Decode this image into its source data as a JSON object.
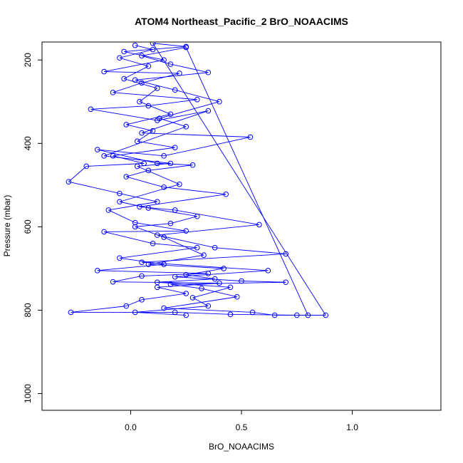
{
  "chart_data": {
    "type": "line",
    "title": "ATOM4 Northeast_Pacific_2 BrO_NOAACIMS",
    "xlabel": "BrO_NOAACIMS",
    "ylabel": "Pressure (mbar)",
    "xlim": [
      -0.4,
      1.4
    ],
    "ylim": [
      1040,
      157
    ],
    "y_reversed": true,
    "x_ticks": [
      0.0,
      0.5,
      1.0
    ],
    "x_tick_labels": [
      "0.0",
      "0.5",
      "1.0"
    ],
    "y_ticks": [
      200,
      400,
      600,
      800,
      1000
    ],
    "y_tick_labels": [
      "200",
      "400",
      "600",
      "800",
      "1000"
    ],
    "grid": false,
    "legend": "none",
    "series_color": "#0000ff",
    "marker": "open-circle",
    "series": [
      {
        "points": [
          [
            0.02,
            165
          ],
          [
            0.1,
            175
          ],
          [
            -0.05,
            195
          ],
          [
            0.08,
            215
          ],
          [
            -0.03,
            245
          ],
          [
            0.12,
            268
          ],
          [
            0.04,
            300
          ],
          [
            0.18,
            330
          ],
          [
            -0.02,
            355
          ],
          [
            0.1,
            370
          ],
          [
            0.03,
            395
          ],
          [
            0.2,
            410
          ],
          [
            -0.08,
            430
          ],
          [
            0.06,
            448
          ],
          [
            -0.2,
            455
          ],
          [
            -0.28,
            492
          ],
          [
            -0.05,
            520
          ],
          [
            0.12,
            540
          ],
          [
            -0.1,
            560
          ],
          [
            0.02,
            590
          ],
          [
            0.25,
            610
          ],
          [
            -0.12,
            612
          ],
          [
            0.1,
            640
          ],
          [
            0.3,
            650
          ],
          [
            -0.05,
            675
          ],
          [
            0.15,
            690
          ],
          [
            -0.15,
            705
          ],
          [
            0.35,
            712
          ],
          [
            0.05,
            718
          ],
          [
            -0.08,
            732
          ],
          [
            0.4,
            735
          ],
          [
            0.12,
            745
          ],
          [
            0.25,
            760
          ],
          [
            0.05,
            775
          ],
          [
            -0.02,
            790
          ],
          [
            -0.27,
            805
          ],
          [
            0.2,
            805
          ],
          [
            0.45,
            810
          ],
          [
            0.75,
            812
          ],
          [
            0.88,
            812
          ],
          [
            0.1,
            160
          ],
          [
            0.25,
            168
          ],
          [
            -0.03,
            180
          ],
          [
            0.15,
            200
          ],
          [
            -0.12,
            228
          ],
          [
            0.22,
            232
          ],
          [
            0.05,
            255
          ],
          [
            -0.08,
            278
          ],
          [
            0.3,
            295
          ],
          [
            0.08,
            310
          ],
          [
            -0.18,
            318
          ],
          [
            0.12,
            345
          ],
          [
            0.35,
            322
          ],
          [
            0.05,
            375
          ],
          [
            0.54,
            385
          ],
          [
            0.15,
            430
          ],
          [
            -0.15,
            415
          ],
          [
            0.12,
            448
          ],
          [
            0.28,
            452
          ],
          [
            0.08,
            465
          ],
          [
            -0.02,
            480
          ],
          [
            0.15,
            505
          ],
          [
            0.43,
            522
          ],
          [
            0.04,
            552
          ],
          [
            0.2,
            560
          ],
          [
            0.58,
            595
          ],
          [
            0.12,
            620
          ],
          [
            0.38,
            650
          ],
          [
            0.7,
            665
          ],
          [
            0.05,
            685
          ],
          [
            0.62,
            705
          ],
          [
            0.2,
            720
          ],
          [
            0.5,
            730
          ],
          [
            0.7,
            733
          ],
          [
            0.18,
            738
          ],
          [
            0.32,
            748
          ],
          [
            0.48,
            768
          ],
          [
            0.15,
            795
          ],
          [
            0.55,
            805
          ],
          [
            0.65,
            812
          ],
          [
            0.8,
            812
          ],
          [
            0.25,
            170
          ],
          [
            0.05,
            190
          ],
          [
            0.18,
            210
          ],
          [
            0.35,
            230
          ],
          [
            0.02,
            248
          ],
          [
            0.2,
            272
          ],
          [
            0.4,
            300
          ],
          [
            0.13,
            340
          ],
          [
            0.25,
            360
          ],
          [
            -0.12,
            430
          ],
          [
            0.18,
            448
          ],
          [
            0.03,
            455
          ],
          [
            0.22,
            498
          ],
          [
            -0.05,
            540
          ],
          [
            0.08,
            555
          ],
          [
            0.3,
            575
          ],
          [
            0.18,
            592
          ],
          [
            0.02,
            600
          ],
          [
            0.15,
            625
          ],
          [
            0.33,
            668
          ],
          [
            0.08,
            690
          ],
          [
            0.42,
            700
          ],
          [
            0.25,
            715
          ],
          [
            0.38,
            725
          ],
          [
            0.12,
            733
          ],
          [
            0.45,
            745
          ],
          [
            0.28,
            770
          ],
          [
            0.35,
            790
          ],
          [
            0.02,
            805
          ],
          [
            0.25,
            812
          ]
        ]
      }
    ]
  }
}
